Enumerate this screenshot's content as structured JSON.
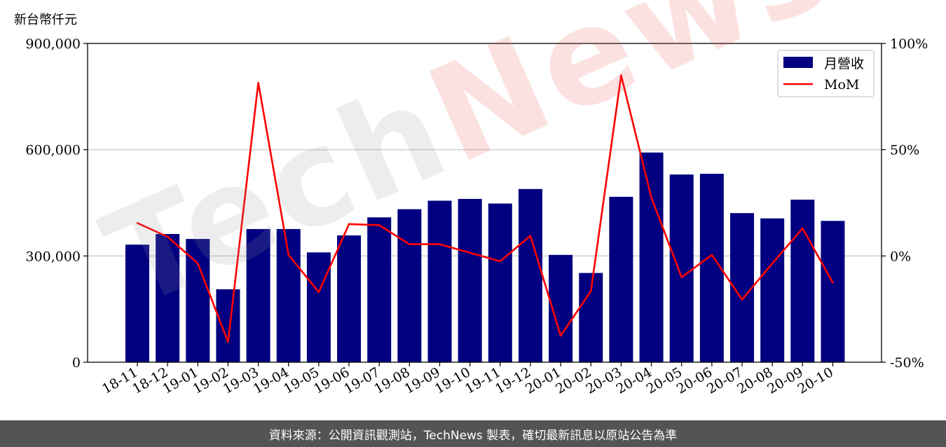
{
  "unit_label": "新台幣仟元",
  "footer": "資料來源：公開資訊觀測站，TechNews 製表，確切最新訊息以原站公告為準",
  "watermark": {
    "part1": "Tech",
    "part2": "News"
  },
  "colors": {
    "bar": "#000080",
    "line": "#ff0000",
    "grid": "#cccccc",
    "footer_bg": "#545454"
  },
  "chart_data": {
    "type": "bar",
    "categories": [
      "18-11",
      "18-12",
      "19-01",
      "19-02",
      "19-03",
      "19-04",
      "19-05",
      "19-06",
      "19-07",
      "19-08",
      "19-09",
      "19-10",
      "19-11",
      "19-12",
      "20-01",
      "20-02",
      "20-03",
      "20-04",
      "20-05",
      "20-06",
      "20-07",
      "20-08",
      "20-09",
      "20-10"
    ],
    "series": [
      {
        "name": "月營收",
        "type": "bar",
        "axis": "left",
        "values": [
          332000,
          362000,
          348000,
          206000,
          376000,
          376000,
          310000,
          358000,
          409000,
          432000,
          456000,
          461000,
          448000,
          489000,
          303000,
          252000,
          467000,
          592000,
          530000,
          532000,
          421000,
          406000,
          459000,
          399000
        ]
      },
      {
        "name": "MoM",
        "type": "line",
        "axis": "right",
        "values": [
          15.5,
          9.0,
          -3.5,
          -40.5,
          81.5,
          0.5,
          -17.0,
          15.0,
          14.5,
          5.5,
          5.5,
          1.5,
          -2.5,
          9.5,
          -37.5,
          -16.5,
          85.0,
          27.5,
          -10.0,
          0.5,
          -20.5,
          -3.5,
          13.0,
          -12.5
        ]
      }
    ],
    "ylim_left": [
      0,
      900000
    ],
    "ylim_right": [
      -50,
      100
    ],
    "yticks_left": [
      "0",
      "300,000",
      "600,000",
      "900,000"
    ],
    "yticks_left_values": [
      0,
      300000,
      600000,
      900000
    ],
    "yticks_right": [
      "-50%",
      "0%",
      "50%",
      "100%"
    ],
    "yticks_right_values": [
      -50,
      0,
      50,
      100
    ],
    "grid": "horizontal",
    "legend_position": "top-right"
  }
}
